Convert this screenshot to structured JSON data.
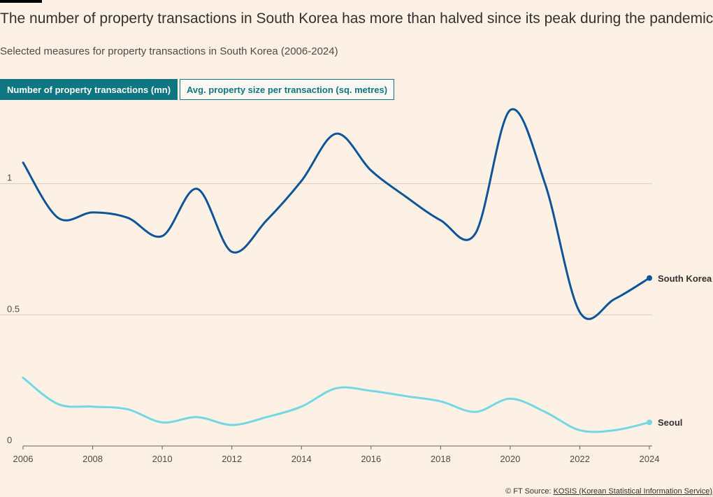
{
  "header": {
    "title": "The number of property transactions in South Korea has more than halved since its peak during the pandemic",
    "subtitle": "Selected measures for property transactions in South Korea (2006-2024)"
  },
  "tabs": [
    {
      "label": "Number of property transactions (mn)",
      "active": true
    },
    {
      "label": "Avg. property size per transaction (sq. metres)",
      "active": false
    }
  ],
  "chart_data": {
    "type": "line",
    "x": [
      2006,
      2007,
      2008,
      2009,
      2010,
      2011,
      2012,
      2013,
      2014,
      2015,
      2016,
      2017,
      2018,
      2019,
      2020,
      2021,
      2022,
      2023,
      2024
    ],
    "series": [
      {
        "name": "South Korea",
        "color": "#0f5499",
        "values": [
          1.08,
          0.87,
          0.89,
          0.87,
          0.8,
          0.98,
          0.74,
          0.86,
          1.01,
          1.19,
          1.05,
          0.95,
          0.86,
          0.81,
          1.28,
          1.0,
          0.51,
          0.56,
          0.64
        ]
      },
      {
        "name": "Seoul",
        "color": "#75d7e6",
        "values": [
          0.26,
          0.16,
          0.15,
          0.14,
          0.09,
          0.11,
          0.08,
          0.11,
          0.15,
          0.22,
          0.21,
          0.19,
          0.17,
          0.13,
          0.18,
          0.13,
          0.06,
          0.06,
          0.09
        ]
      }
    ],
    "yticks": [
      0,
      0.5,
      1
    ],
    "ytick_labels": [
      "0",
      "0.5",
      "1"
    ],
    "xticks": [
      2006,
      2008,
      2010,
      2012,
      2014,
      2016,
      2018,
      2020,
      2022,
      2024
    ],
    "ylim": [
      0,
      1.3
    ],
    "xlim": [
      2006,
      2024
    ],
    "grid": true
  },
  "footer": {
    "copyright": "© FT",
    "source_label": "Source:",
    "source_link": "KOSIS (Korean Statistical Information Service)"
  },
  "colors": {
    "background": "#fdf1e5",
    "tab_active": "#0d7680",
    "gridline": "#d9cdc2"
  }
}
